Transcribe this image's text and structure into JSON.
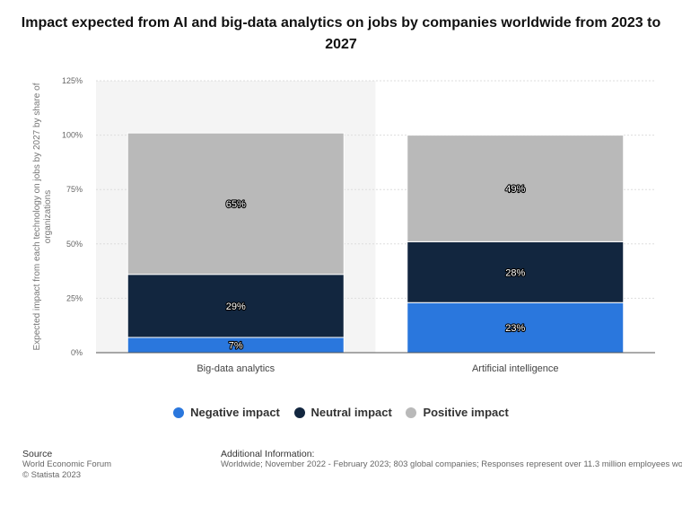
{
  "title": "Impact expected from AI and big-data analytics on jobs by companies worldwide from 2023 to 2027",
  "colors": {
    "negative": "#2a77dd",
    "neutral": "#12263f",
    "positive": "#b9b9b9",
    "highlight_band": "#f4f4f4"
  },
  "legend": [
    {
      "label": "Negative impact",
      "color": "#2a77dd"
    },
    {
      "label": "Neutral impact",
      "color": "#12263f"
    },
    {
      "label": "Positive impact",
      "color": "#b9b9b9"
    }
  ],
  "footer": {
    "source_heading": "Source",
    "source_line1": "World Economic Forum",
    "source_line2": "© Statista 2023",
    "info_heading": "Additional Information:",
    "info_text": "Worldwide; November 2022 - February 2023; 803 global companies; Responses represent over 11.3 million employees wo"
  },
  "chart_data": {
    "type": "bar",
    "stacked": true,
    "categories": [
      "Big-data analytics",
      "Artificial intelligence"
    ],
    "series": [
      {
        "name": "Negative impact",
        "values": [
          7,
          23
        ],
        "labels": [
          "7%",
          "23%"
        ]
      },
      {
        "name": "Neutral impact",
        "values": [
          29,
          28
        ],
        "labels": [
          "29%",
          "28%"
        ]
      },
      {
        "name": "Positive impact",
        "values": [
          65,
          49
        ],
        "labels": [
          "65%",
          "49%"
        ]
      }
    ],
    "ylabel": "Expected impact from each technology on jobs by 2027 by share of organizations",
    "ylim": [
      0,
      125
    ],
    "yticks": [
      "0%",
      "25%",
      "50%",
      "75%",
      "100%",
      "125%"
    ],
    "ytick_values": [
      0,
      25,
      50,
      75,
      100,
      125
    ],
    "grid": true,
    "legend_position": "bottom"
  }
}
